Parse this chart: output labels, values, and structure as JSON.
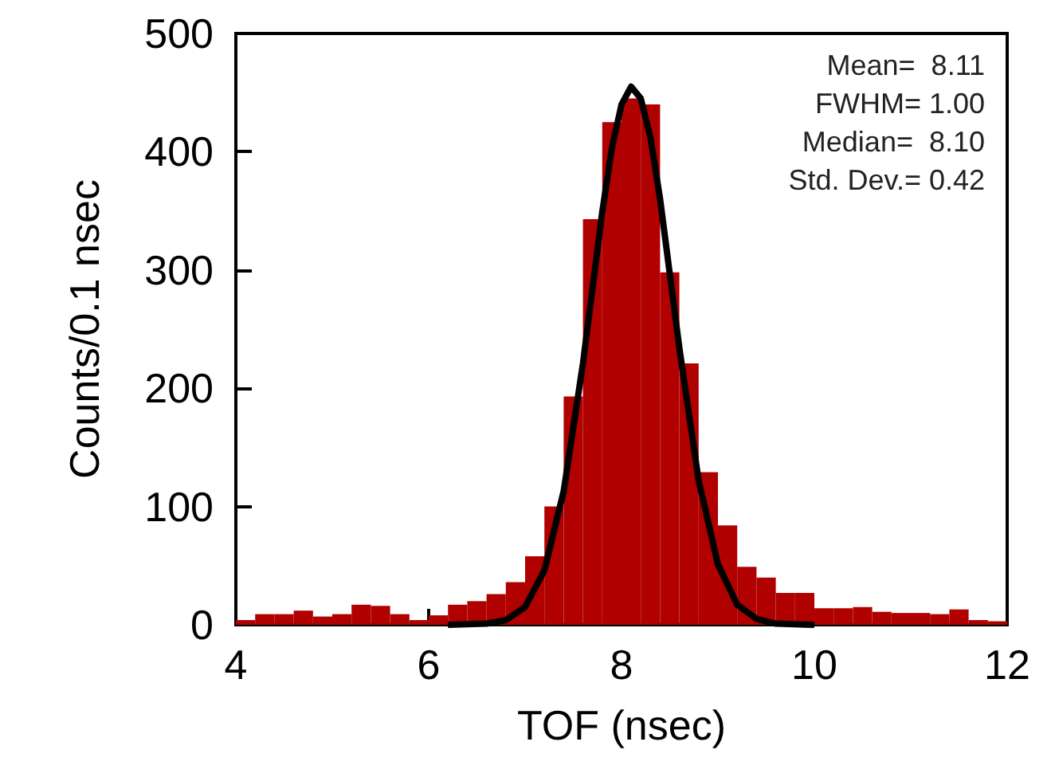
{
  "chart_data": {
    "type": "histogram",
    "xlabel": "TOF (nsec)",
    "ylabel": "Counts/0.1 nsec",
    "bins": [
      4.0,
      4.2,
      4.4,
      4.6,
      4.8,
      5.0,
      5.2,
      5.4,
      5.6,
      5.8,
      6.0,
      6.2,
      6.4,
      6.6,
      6.8,
      7.0,
      7.2,
      7.4,
      7.6,
      7.8,
      8.0,
      8.2,
      8.4,
      8.6,
      8.8,
      9.0,
      9.2,
      9.4,
      9.6,
      9.8,
      10.0,
      10.2,
      10.4,
      10.6,
      10.8,
      11.0,
      11.2,
      11.4,
      11.6,
      11.8,
      12.0
    ],
    "values": [
      4,
      9,
      9,
      12,
      7,
      9,
      17,
      16,
      9,
      4,
      8,
      17,
      20,
      26,
      36,
      58,
      100,
      193,
      343,
      425,
      445,
      440,
      298,
      221,
      129,
      84,
      49,
      40,
      27,
      27,
      14,
      14,
      15,
      11,
      10,
      10,
      9,
      13,
      4,
      3
    ],
    "color": "#b00000",
    "series": [
      {
        "type": "line",
        "color": "#000000",
        "x": [
          6.2,
          6.6,
          6.8,
          7.0,
          7.2,
          7.4,
          7.6,
          7.8,
          7.9,
          8.0,
          8.1,
          8.2,
          8.3,
          8.4,
          8.6,
          8.8,
          9.0,
          9.2,
          9.4,
          9.6,
          10.0
        ],
        "values": [
          0,
          1,
          4,
          15,
          46,
          113,
          221,
          349,
          403,
          440,
          455,
          445,
          412,
          360,
          234,
          122,
          51,
          17,
          5,
          1,
          0
        ]
      }
    ],
    "xlim": [
      4,
      12
    ],
    "xticks": [
      4,
      6,
      8,
      10,
      12
    ],
    "ylim": [
      0,
      500
    ],
    "yticks": [
      0,
      100,
      200,
      300,
      400,
      500
    ],
    "annotations": [
      "Mean=  8.11",
      "FWHM= 1.00",
      "Median=  8.10",
      "Std. Dev.= 0.42"
    ],
    "marker": "none",
    "line_style": "solid"
  }
}
